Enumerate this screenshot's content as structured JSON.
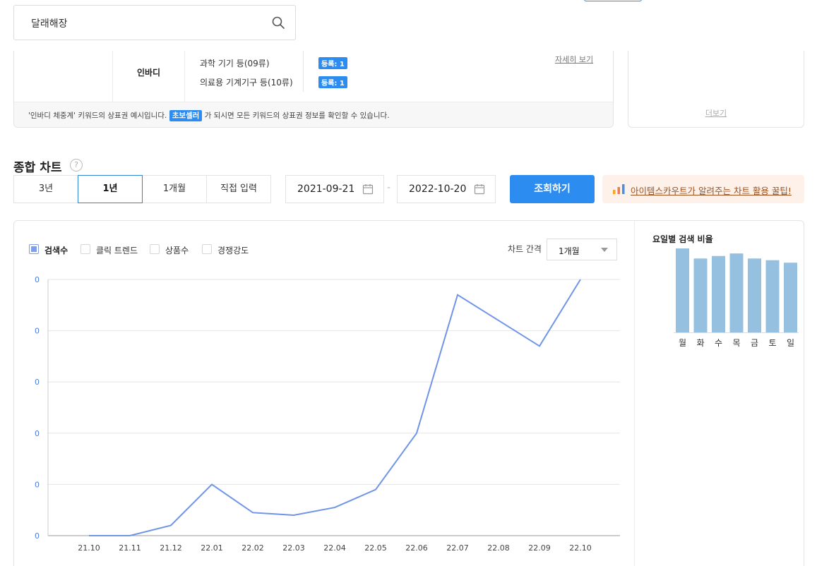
{
  "search": {
    "value": "달래해장"
  },
  "trademark": {
    "brand": "인바디",
    "rows": [
      {
        "class_name": "과학 기기 등(09류)",
        "status": "등록: 1"
      },
      {
        "class_name": "의료용 기계기구 등(10류)",
        "status": "등록: 1"
      }
    ],
    "detail_link": "자세히 보기",
    "footer_pre": "'인바디 체중계' 키워드의 상표권 예시입니다.",
    "footer_tag": "초보셀러",
    "footer_post": "가 되시면 모든 키워드의 상표권 정보를 확인할 수 있습니다."
  },
  "side_card": {
    "more": "더보기"
  },
  "section": {
    "title": "종합 차트",
    "help": "?"
  },
  "period_tabs": [
    {
      "label": "3년",
      "active": false
    },
    {
      "label": "1년",
      "active": true
    },
    {
      "label": "1개월",
      "active": false
    },
    {
      "label": "직접 입력",
      "active": false
    }
  ],
  "date_range": {
    "start": "2021-09-21",
    "separator": "-",
    "end": "2022-10-20"
  },
  "query_button": "조회하기",
  "tip_button": "아이템스카우트가 알려주는 차트 활용 꿀팁!",
  "legend": [
    {
      "label": "검색수",
      "checked": true
    },
    {
      "label": "클릭 트렌드",
      "checked": false
    },
    {
      "label": "상품수",
      "checked": false
    },
    {
      "label": "경쟁강도",
      "checked": false
    }
  ],
  "interval": {
    "label": "차트 간격",
    "value": "1개월"
  },
  "colors": {
    "accent": "#2d8cf0",
    "line": "#6f94e8",
    "weekday_bar": "#96c0e0",
    "tip_bg": "#fdf1ea",
    "tip_text": "#a0521e"
  },
  "chart_data": [
    {
      "type": "line",
      "title": "",
      "series": [
        {
          "name": "검색수",
          "values": [
            0,
            0,
            4,
            20,
            9,
            8,
            11,
            18,
            40,
            94,
            84,
            74,
            100
          ]
        }
      ],
      "x": [
        "21.10",
        "21.11",
        "21.12",
        "22.01",
        "22.02",
        "22.03",
        "22.04",
        "22.05",
        "22.06",
        "22.07",
        "22.08",
        "22.09",
        "22.10"
      ],
      "y_tick_labels": [
        "0",
        "0",
        "0",
        "0",
        "0",
        "0"
      ],
      "ylim": [
        0,
        100
      ],
      "grid": true
    },
    {
      "type": "bar",
      "title": "요일별 검색 비율",
      "categories": [
        "월",
        "화",
        "수",
        "목",
        "금",
        "토",
        "일"
      ],
      "values": [
        100,
        88,
        91,
        94,
        88,
        86,
        83
      ],
      "ylim": [
        0,
        100
      ]
    }
  ]
}
